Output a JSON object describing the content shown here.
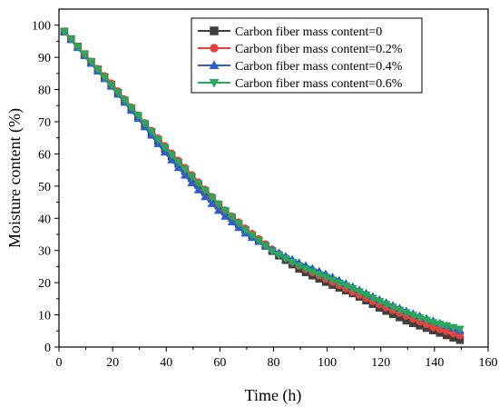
{
  "chart_data": {
    "type": "line",
    "title": "",
    "xlabel": "Time (h)",
    "ylabel": "Moisture content (%)",
    "xlim": [
      0,
      160
    ],
    "ylim": [
      0,
      105
    ],
    "xticks": [
      0,
      20,
      40,
      60,
      80,
      100,
      120,
      140,
      160
    ],
    "yticks": [
      0,
      10,
      20,
      30,
      40,
      50,
      60,
      70,
      80,
      90,
      100
    ],
    "grid": false,
    "legend_position": "top-right",
    "series": [
      {
        "name": "Carbon fiber mass content=0",
        "color": "#404040",
        "marker": "square",
        "x": [
          2,
          10,
          20,
          30,
          40,
          50,
          60,
          70,
          80,
          90,
          100,
          110,
          120,
          130,
          140,
          150
        ],
        "values": [
          98,
          90.5,
          81,
          71,
          61,
          52,
          43.5,
          36,
          29.5,
          24,
          20,
          16.5,
          12,
          8,
          5,
          2
        ]
      },
      {
        "name": "Carbon fiber mass content=0.2%",
        "color": "#e8413a",
        "marker": "circle",
        "x": [
          2,
          10,
          20,
          30,
          40,
          50,
          60,
          70,
          80,
          90,
          100,
          110,
          120,
          130,
          140,
          150
        ],
        "values": [
          98,
          90.5,
          81.5,
          71.5,
          62,
          53,
          44,
          36.5,
          30,
          25,
          21,
          17,
          13,
          9.5,
          6,
          3.5
        ]
      },
      {
        "name": "Carbon fiber mass content=0.4%",
        "color": "#2d5fcc",
        "marker": "triangle-up",
        "x": [
          2,
          10,
          20,
          30,
          40,
          50,
          60,
          70,
          80,
          90,
          100,
          110,
          120,
          130,
          140,
          150
        ],
        "values": [
          98,
          90,
          80.5,
          70.5,
          60,
          50.5,
          42,
          35,
          30,
          26,
          22.5,
          18.5,
          14.5,
          11,
          8,
          5
        ]
      },
      {
        "name": "Carbon fiber mass content=0.6%",
        "color": "#27a85a",
        "marker": "triangle-down",
        "x": [
          2,
          10,
          20,
          30,
          40,
          50,
          60,
          70,
          80,
          90,
          100,
          110,
          120,
          130,
          140,
          150
        ],
        "values": [
          98,
          90.5,
          81,
          71.5,
          61.5,
          52.5,
          44,
          36,
          29.5,
          25,
          21.5,
          18,
          14,
          10.5,
          7.5,
          5.5
        ]
      }
    ]
  }
}
